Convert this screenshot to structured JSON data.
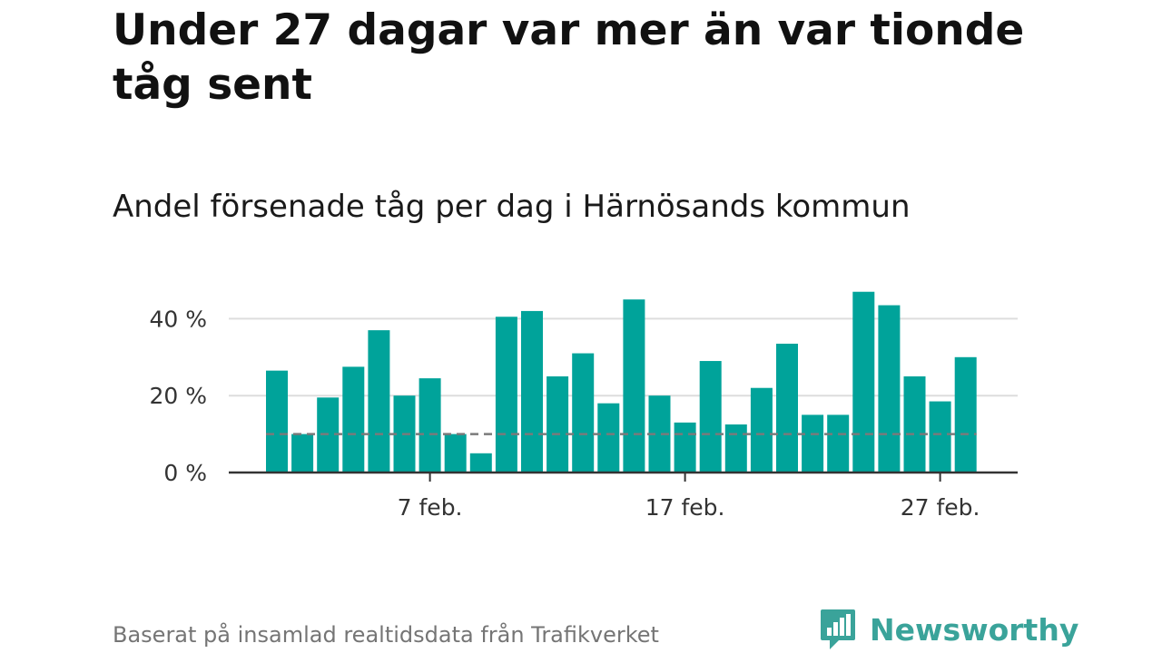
{
  "title": "Under 27 dagar var mer än var tionde tåg sent",
  "subtitle": "Andel försenade tåg per dag i Härnösands kommun",
  "footer": "Baserat på insamlad realtidsdata från Trafikverket",
  "brand": {
    "name": "Newsworthy",
    "color": "#3aa39a",
    "icon": "newsworthy-logo-icon"
  },
  "chart_data": {
    "type": "bar",
    "x_unit": "day of February",
    "days": [
      1,
      2,
      3,
      4,
      5,
      6,
      7,
      8,
      9,
      10,
      11,
      12,
      13,
      14,
      15,
      16,
      17,
      18,
      19,
      20,
      21,
      22,
      23,
      24,
      25,
      26,
      27,
      28
    ],
    "values": [
      26.5,
      10,
      19.5,
      27.5,
      37,
      20,
      24.5,
      10,
      5,
      40.5,
      42,
      25,
      31,
      18,
      45,
      20,
      13,
      29,
      12.5,
      22,
      33.5,
      15,
      15,
      47,
      43.5,
      25,
      18.5,
      30
    ],
    "x_ticks": [
      {
        "day": 7,
        "label": "7 feb."
      },
      {
        "day": 17,
        "label": "17 feb."
      },
      {
        "day": 27,
        "label": "27 feb."
      }
    ],
    "y_ticks": [
      {
        "value": 0,
        "label": "0 %"
      },
      {
        "value": 20,
        "label": "20 %"
      },
      {
        "value": 40,
        "label": "40 %"
      }
    ],
    "ylim": [
      0,
      50
    ],
    "reference_line": 10,
    "bar_color": "#00a39a",
    "grid": true,
    "legend": "none"
  }
}
